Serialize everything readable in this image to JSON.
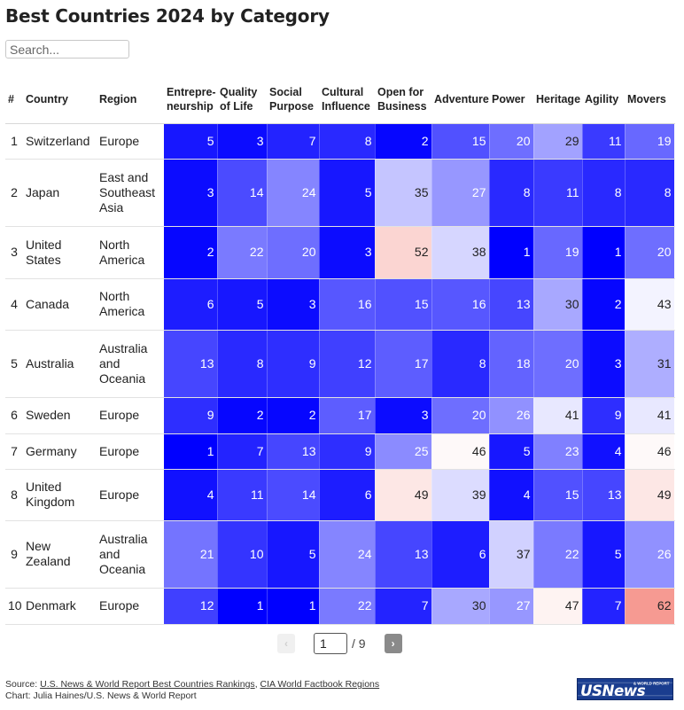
{
  "title": "Best Countries 2024 by Category",
  "search": {
    "placeholder": "Search..."
  },
  "colors": {
    "best": "#0000ff",
    "mid": "#ffffff",
    "worst": "#f69a92",
    "text_dark": "#222222",
    "text_light": "#ffffff"
  },
  "chart_data": {
    "type": "table",
    "title": "Best Countries 2024 by Category",
    "columns": [
      "#",
      "Country",
      "Region",
      "Entrepre-neurship",
      "Quality of Life",
      "Social Purpose",
      "Cultural Influence",
      "Open for Business",
      "Adventure",
      "Power",
      "Heritage",
      "Agility",
      "Movers"
    ],
    "header_lines": {
      "rank": "#",
      "country": "Country",
      "region": "Region",
      "entrepreneurship": [
        "Entrepre-",
        "neurship"
      ],
      "quality": [
        "Quality",
        "of Life"
      ],
      "social": [
        "Social",
        "Purpose"
      ],
      "cultural": [
        "Cultural",
        "Influence"
      ],
      "open": [
        "Open for",
        "Business"
      ],
      "adventure": [
        "Adventure"
      ],
      "power": [
        "Power"
      ],
      "heritage": [
        "Heritage"
      ],
      "agility": [
        "Agility"
      ],
      "movers": [
        "Movers"
      ]
    },
    "color_scale": {
      "min": 1,
      "mid": 45,
      "max": 62
    },
    "rows": [
      {
        "rank": "1",
        "country": [
          "Switzerland"
        ],
        "region": [
          "Europe"
        ],
        "values": [
          5,
          3,
          7,
          8,
          2,
          15,
          20,
          29,
          11,
          19
        ]
      },
      {
        "rank": "2",
        "country": [
          "Japan"
        ],
        "region": [
          "East and",
          "Southeast",
          "Asia"
        ],
        "values": [
          3,
          14,
          24,
          5,
          35,
          27,
          8,
          11,
          8,
          8
        ]
      },
      {
        "rank": "3",
        "country": [
          "United",
          "States"
        ],
        "region": [
          "North",
          "America"
        ],
        "values": [
          2,
          22,
          20,
          3,
          52,
          38,
          1,
          19,
          1,
          20
        ]
      },
      {
        "rank": "4",
        "country": [
          "Canada"
        ],
        "region": [
          "North",
          "America"
        ],
        "values": [
          6,
          5,
          3,
          16,
          15,
          16,
          13,
          30,
          2,
          43
        ]
      },
      {
        "rank": "5",
        "country": [
          "Australia"
        ],
        "region": [
          "Australia",
          "and",
          "Oceania"
        ],
        "values": [
          13,
          8,
          9,
          12,
          17,
          8,
          18,
          20,
          3,
          31
        ]
      },
      {
        "rank": "6",
        "country": [
          "Sweden"
        ],
        "region": [
          "Europe"
        ],
        "values": [
          9,
          2,
          2,
          17,
          3,
          20,
          26,
          41,
          9,
          41
        ]
      },
      {
        "rank": "7",
        "country": [
          "Germany"
        ],
        "region": [
          "Europe"
        ],
        "values": [
          1,
          7,
          13,
          9,
          25,
          46,
          5,
          23,
          4,
          46
        ]
      },
      {
        "rank": "8",
        "country": [
          "United",
          "Kingdom"
        ],
        "region": [
          "Europe"
        ],
        "values": [
          4,
          11,
          14,
          6,
          49,
          39,
          4,
          15,
          13,
          49
        ]
      },
      {
        "rank": "9",
        "country": [
          "New",
          "Zealand"
        ],
        "region": [
          "Australia",
          "and",
          "Oceania"
        ],
        "values": [
          21,
          10,
          5,
          24,
          13,
          6,
          37,
          22,
          5,
          26
        ]
      },
      {
        "rank": "10",
        "country": [
          "Denmark"
        ],
        "region": [
          "Europe"
        ],
        "values": [
          12,
          1,
          1,
          22,
          7,
          30,
          27,
          47,
          7,
          62
        ]
      }
    ]
  },
  "pagination": {
    "current": "1",
    "total_label": "/ 9",
    "prev_icon": "‹",
    "next_icon": "›"
  },
  "footer": {
    "source_prefix": "Source: ",
    "source_link1": "U.S. News & World Report Best Countries Rankings",
    "source_sep": ", ",
    "source_link2": "CIA World Factbook Regions",
    "credit": "Chart: Julia Haines/U.S. News & World Report"
  },
  "logo": {
    "text": "USNews",
    "tagline": "& WORLD REPORT"
  }
}
